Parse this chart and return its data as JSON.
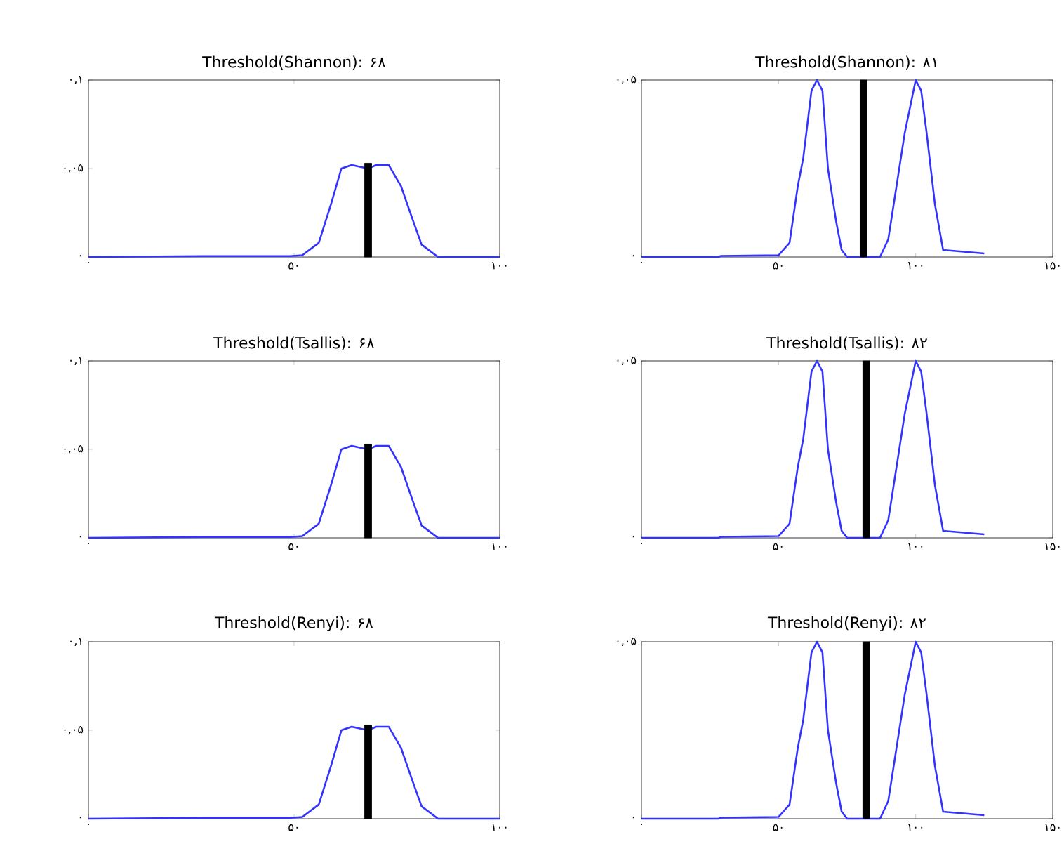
{
  "chart_data": [
    {
      "type": "line",
      "title": "Threshold(Shannon): ۶۸",
      "xlim": [
        0,
        100
      ],
      "ylim": [
        0,
        0.1
      ],
      "xticks": [
        {
          "value": 0,
          "label": "۰"
        },
        {
          "value": 50,
          "label": "۵۰"
        },
        {
          "value": 100,
          "label": "۱۰۰"
        }
      ],
      "yticks": [
        {
          "value": 0,
          "label": "۰"
        },
        {
          "value": 0.05,
          "label": "۰,۰۵"
        },
        {
          "value": 0.1,
          "label": "۰,۱"
        }
      ],
      "series": [
        {
          "color": "#3333ff",
          "x": [
            0,
            28,
            49,
            52,
            56,
            59,
            61.5,
            64,
            68,
            70,
            73,
            76,
            79,
            81,
            85,
            100
          ],
          "values": [
            0,
            0.0005,
            0.0005,
            0.001,
            0.008,
            0.03,
            0.05,
            0.052,
            0.05,
            0.052,
            0.052,
            0.04,
            0.02,
            0.007,
            0,
            0
          ]
        },
        {
          "type": "bar",
          "color": "#000000",
          "x": [
            68
          ],
          "values": [
            0.053
          ]
        }
      ]
    },
    {
      "type": "line",
      "title": "Threshold(Shannon): ۸۱",
      "xlim": [
        0,
        150
      ],
      "ylim": [
        0,
        0.05
      ],
      "xticks": [
        {
          "value": 0,
          "label": "۰"
        },
        {
          "value": 50,
          "label": "۵۰"
        },
        {
          "value": 100,
          "label": "۱۰۰"
        },
        {
          "value": 150,
          "label": "۱۵۰"
        }
      ],
      "yticks": [
        {
          "value": 0,
          "label": "۰"
        },
        {
          "value": 0.05,
          "label": "۰,۰۵"
        }
      ],
      "series": [
        {
          "color": "#3333ff",
          "x": [
            0,
            28,
            29,
            50,
            54,
            57,
            59,
            62,
            64,
            66,
            68,
            71,
            73,
            75,
            87,
            90,
            93,
            96,
            100,
            102,
            104,
            107,
            110,
            125
          ],
          "values": [
            0,
            0,
            0.0003,
            0.0005,
            0.004,
            0.02,
            0.028,
            0.047,
            0.05,
            0.047,
            0.025,
            0.01,
            0.002,
            0,
            0,
            0.005,
            0.02,
            0.035,
            0.05,
            0.047,
            0.035,
            0.015,
            0.002,
            0.001
          ]
        },
        {
          "type": "bar",
          "color": "#000000",
          "x": [
            81
          ],
          "values": [
            0.05
          ]
        }
      ]
    },
    {
      "type": "line",
      "title": "Threshold(Tsallis): ۶۸",
      "xlim": [
        0,
        100
      ],
      "ylim": [
        0,
        0.1
      ],
      "xticks": [
        {
          "value": 0,
          "label": "۰"
        },
        {
          "value": 50,
          "label": "۵۰"
        },
        {
          "value": 100,
          "label": "۱۰۰"
        }
      ],
      "yticks": [
        {
          "value": 0,
          "label": "۰"
        },
        {
          "value": 0.05,
          "label": "۰,۰۵"
        },
        {
          "value": 0.1,
          "label": "۰,۱"
        }
      ],
      "series": [
        {
          "color": "#3333ff",
          "x": [
            0,
            28,
            49,
            52,
            56,
            59,
            61.5,
            64,
            68,
            70,
            73,
            76,
            79,
            81,
            85,
            100
          ],
          "values": [
            0,
            0.0005,
            0.0005,
            0.001,
            0.008,
            0.03,
            0.05,
            0.052,
            0.05,
            0.052,
            0.052,
            0.04,
            0.02,
            0.007,
            0,
            0
          ]
        },
        {
          "type": "bar",
          "color": "#000000",
          "x": [
            68
          ],
          "values": [
            0.053
          ]
        }
      ]
    },
    {
      "type": "line",
      "title": "Threshold(Tsallis): ۸۲",
      "xlim": [
        0,
        150
      ],
      "ylim": [
        0,
        0.05
      ],
      "xticks": [
        {
          "value": 0,
          "label": "۰"
        },
        {
          "value": 50,
          "label": "۵۰"
        },
        {
          "value": 100,
          "label": "۱۰۰"
        },
        {
          "value": 150,
          "label": "۱۵۰"
        }
      ],
      "yticks": [
        {
          "value": 0,
          "label": "۰"
        },
        {
          "value": 0.05,
          "label": "۰,۰۵"
        }
      ],
      "series": [
        {
          "color": "#3333ff",
          "x": [
            0,
            28,
            29,
            50,
            54,
            57,
            59,
            62,
            64,
            66,
            68,
            71,
            73,
            75,
            87,
            90,
            93,
            96,
            100,
            102,
            104,
            107,
            110,
            125
          ],
          "values": [
            0,
            0,
            0.0003,
            0.0005,
            0.004,
            0.02,
            0.028,
            0.047,
            0.05,
            0.047,
            0.025,
            0.01,
            0.002,
            0,
            0,
            0.005,
            0.02,
            0.035,
            0.05,
            0.047,
            0.035,
            0.015,
            0.002,
            0.001
          ]
        },
        {
          "type": "bar",
          "color": "#000000",
          "x": [
            82
          ],
          "values": [
            0.05
          ]
        }
      ]
    },
    {
      "type": "line",
      "title": "Threshold(Renyi): ۶۸",
      "xlim": [
        0,
        100
      ],
      "ylim": [
        0,
        0.1
      ],
      "xticks": [
        {
          "value": 0,
          "label": "۰"
        },
        {
          "value": 50,
          "label": "۵۰"
        },
        {
          "value": 100,
          "label": "۱۰۰"
        }
      ],
      "yticks": [
        {
          "value": 0,
          "label": "۰"
        },
        {
          "value": 0.05,
          "label": "۰,۰۵"
        },
        {
          "value": 0.1,
          "label": "۰,۱"
        }
      ],
      "series": [
        {
          "color": "#3333ff",
          "x": [
            0,
            28,
            49,
            52,
            56,
            59,
            61.5,
            64,
            68,
            70,
            73,
            76,
            79,
            81,
            85,
            100
          ],
          "values": [
            0,
            0.0005,
            0.0005,
            0.001,
            0.008,
            0.03,
            0.05,
            0.052,
            0.05,
            0.052,
            0.052,
            0.04,
            0.02,
            0.007,
            0,
            0
          ]
        },
        {
          "type": "bar",
          "color": "#000000",
          "x": [
            68
          ],
          "values": [
            0.053
          ]
        }
      ]
    },
    {
      "type": "line",
      "title": "Threshold(Renyi): ۸۲",
      "xlim": [
        0,
        150
      ],
      "ylim": [
        0,
        0.05
      ],
      "xticks": [
        {
          "value": 0,
          "label": "۰"
        },
        {
          "value": 50,
          "label": "۵۰"
        },
        {
          "value": 100,
          "label": "۱۰۰"
        },
        {
          "value": 150,
          "label": "۱۵۰"
        }
      ],
      "yticks": [
        {
          "value": 0,
          "label": "۰"
        },
        {
          "value": 0.05,
          "label": "۰,۰۵"
        }
      ],
      "series": [
        {
          "color": "#3333ff",
          "x": [
            0,
            28,
            29,
            50,
            54,
            57,
            59,
            62,
            64,
            66,
            68,
            71,
            73,
            75,
            87,
            90,
            93,
            96,
            100,
            102,
            104,
            107,
            110,
            125
          ],
          "values": [
            0,
            0,
            0.0003,
            0.0005,
            0.004,
            0.02,
            0.028,
            0.047,
            0.05,
            0.047,
            0.025,
            0.01,
            0.002,
            0,
            0,
            0.005,
            0.02,
            0.035,
            0.05,
            0.047,
            0.035,
            0.015,
            0.002,
            0.001
          ]
        },
        {
          "type": "bar",
          "color": "#000000",
          "x": [
            82
          ],
          "values": [
            0.05
          ]
        }
      ]
    }
  ]
}
